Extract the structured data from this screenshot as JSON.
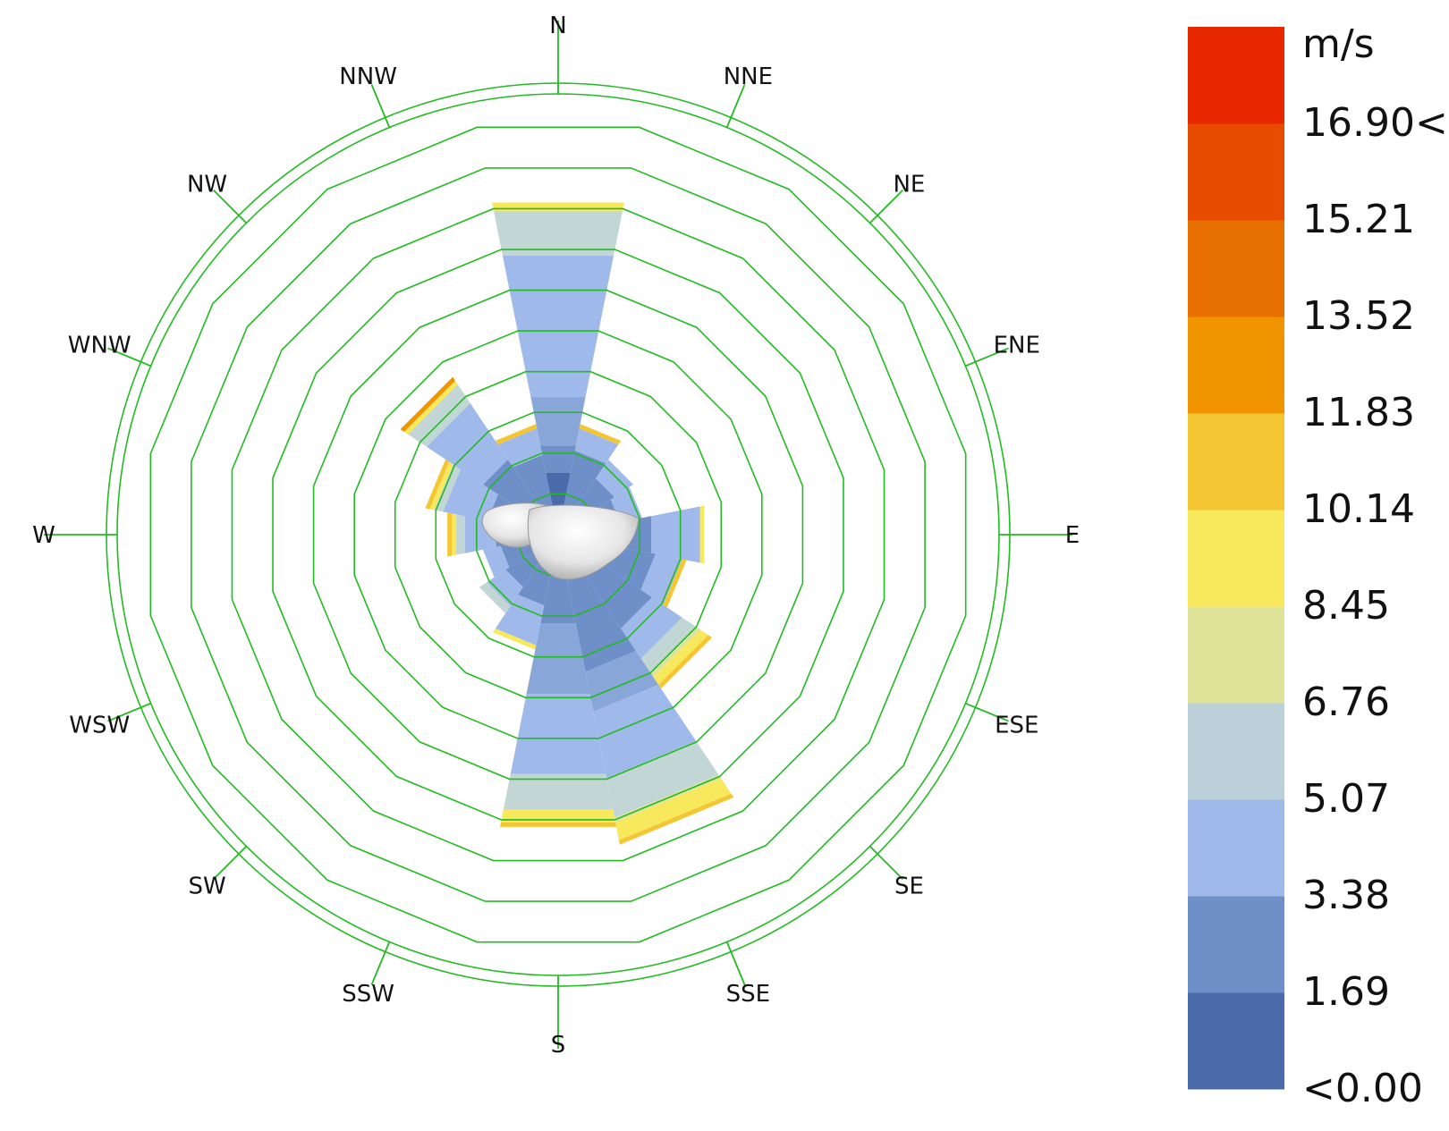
{
  "chart_data": {
    "type": "wind-rose",
    "unit": "m/s",
    "directions": [
      "N",
      "NNE",
      "NE",
      "ENE",
      "E",
      "ESE",
      "SE",
      "SSE",
      "S",
      "SSW",
      "SW",
      "WSW",
      "W",
      "WNW",
      "NW",
      "NNW"
    ],
    "rings": 10,
    "legend": {
      "unit": "m/s",
      "bins": [
        "<0.00",
        "1.69",
        "3.38",
        "5.07",
        "6.76",
        "8.45",
        "10.14",
        "11.83",
        "13.52",
        "15.21",
        "16.90<"
      ],
      "colors": [
        "#4a6aaa",
        "#6e8fc8",
        "#9fbaea",
        "#bcd0da",
        "#dfe49a",
        "#f8e85c",
        "#f4c634",
        "#f09400",
        "#e87000",
        "#e84c00",
        "#e82800"
      ]
    },
    "sectors": [
      {
        "dir": "N",
        "layers": [
          {
            "color": "#4a6aaa",
            "r": 0.14
          },
          {
            "color": "#6e8fc8",
            "r": 0.2
          },
          {
            "color": "#89a6d9",
            "r": 0.31
          },
          {
            "color": "#9fbaea",
            "r": 0.52
          },
          {
            "color": "#9fbaea",
            "r": 0.63
          },
          {
            "color": "#c2d6d6",
            "r": 0.73
          },
          {
            "color": "#f8e85c",
            "r": 0.75
          }
        ]
      },
      {
        "dir": "NNE",
        "layers": [
          {
            "color": "#6e8fc8",
            "r": 0.19
          },
          {
            "color": "#9fbaea",
            "r": 0.24
          },
          {
            "color": "#f4c634",
            "r": 0.25
          }
        ]
      },
      {
        "dir": "NE",
        "layers": [
          {
            "color": "#6e8fc8",
            "r": 0.15
          },
          {
            "color": "#9fbaea",
            "r": 0.2
          }
        ]
      },
      {
        "dir": "ENE",
        "layers": [
          {
            "color": "#6e8fc8",
            "r": 0.14
          },
          {
            "color": "#9fbaea",
            "r": 0.19
          }
        ]
      },
      {
        "dir": "E",
        "layers": [
          {
            "color": "#6e8fc8",
            "r": 0.21
          },
          {
            "color": "#9fbaea",
            "r": 0.32
          },
          {
            "color": "#f8e85c",
            "r": 0.33
          }
        ]
      },
      {
        "dir": "ESE",
        "layers": [
          {
            "color": "#6e8fc8",
            "r": 0.22
          },
          {
            "color": "#9fbaea",
            "r": 0.28
          },
          {
            "color": "#f4c634",
            "r": 0.29
          }
        ]
      },
      {
        "dir": "SE",
        "layers": [
          {
            "color": "#6e8fc8",
            "r": 0.25
          },
          {
            "color": "#9fbaea",
            "r": 0.33
          },
          {
            "color": "#c2d6d6",
            "r": 0.37
          },
          {
            "color": "#dfe49a",
            "r": 0.38
          },
          {
            "color": "#f8e85c",
            "r": 0.4
          },
          {
            "color": "#f4c634",
            "r": 0.41
          }
        ]
      },
      {
        "dir": "SSE",
        "layers": [
          {
            "color": "#6e8fc8",
            "r": 0.31
          },
          {
            "color": "#89a6d9",
            "r": 0.4
          },
          {
            "color": "#9fbaea",
            "r": 0.55
          },
          {
            "color": "#c2d6d6",
            "r": 0.64
          },
          {
            "color": "#dfe49a",
            "r": 0.65
          },
          {
            "color": "#f8e85c",
            "r": 0.69
          },
          {
            "color": "#f4c634",
            "r": 0.7
          }
        ]
      },
      {
        "dir": "S",
        "layers": [
          {
            "color": "#4a6aaa",
            "r": 0.09
          },
          {
            "color": "#6e8fc8",
            "r": 0.2
          },
          {
            "color": "#89a6d9",
            "r": 0.36
          },
          {
            "color": "#9fbaea",
            "r": 0.54
          },
          {
            "color": "#c2d6d6",
            "r": 0.62
          },
          {
            "color": "#f8e85c",
            "r": 0.65
          },
          {
            "color": "#f4c634",
            "r": 0.66
          }
        ]
      },
      {
        "dir": "SSW",
        "layers": [
          {
            "color": "#6e8fc8",
            "r": 0.16
          },
          {
            "color": "#9fbaea",
            "r": 0.25
          },
          {
            "color": "#f8e85c",
            "r": 0.26
          }
        ]
      },
      {
        "dir": "SW",
        "layers": [
          {
            "color": "#6e8fc8",
            "r": 0.14
          },
          {
            "color": "#9fbaea",
            "r": 0.19
          },
          {
            "color": "#c2d6d6",
            "r": 0.21
          }
        ]
      },
      {
        "dir": "WSW",
        "layers": [
          {
            "color": "#6e8fc8",
            "r": 0.13
          },
          {
            "color": "#9fbaea",
            "r": 0.17
          }
        ]
      },
      {
        "dir": "W",
        "layers": [
          {
            "color": "#6e8fc8",
            "r": 0.14
          },
          {
            "color": "#9fbaea",
            "r": 0.21
          },
          {
            "color": "#c2d6d6",
            "r": 0.23
          },
          {
            "color": "#f8e85c",
            "r": 0.24
          },
          {
            "color": "#f4c634",
            "r": 0.25
          }
        ]
      },
      {
        "dir": "WNW",
        "layers": [
          {
            "color": "#6e8fc8",
            "r": 0.16
          },
          {
            "color": "#9fbaea",
            "r": 0.26
          },
          {
            "color": "#c2d6d6",
            "r": 0.28
          },
          {
            "color": "#f8e85c",
            "r": 0.29
          },
          {
            "color": "#f4c634",
            "r": 0.3
          }
        ]
      },
      {
        "dir": "NW",
        "layers": [
          {
            "color": "#6e8fc8",
            "r": 0.2
          },
          {
            "color": "#9fbaea",
            "r": 0.35
          },
          {
            "color": "#c2d6d6",
            "r": 0.4
          },
          {
            "color": "#f8e85c",
            "r": 0.41
          },
          {
            "color": "#f09400",
            "r": 0.42
          }
        ]
      },
      {
        "dir": "NNW",
        "layers": [
          {
            "color": "#6e8fc8",
            "r": 0.18
          },
          {
            "color": "#9fbaea",
            "r": 0.24
          },
          {
            "color": "#f4c634",
            "r": 0.25
          }
        ]
      }
    ]
  }
}
